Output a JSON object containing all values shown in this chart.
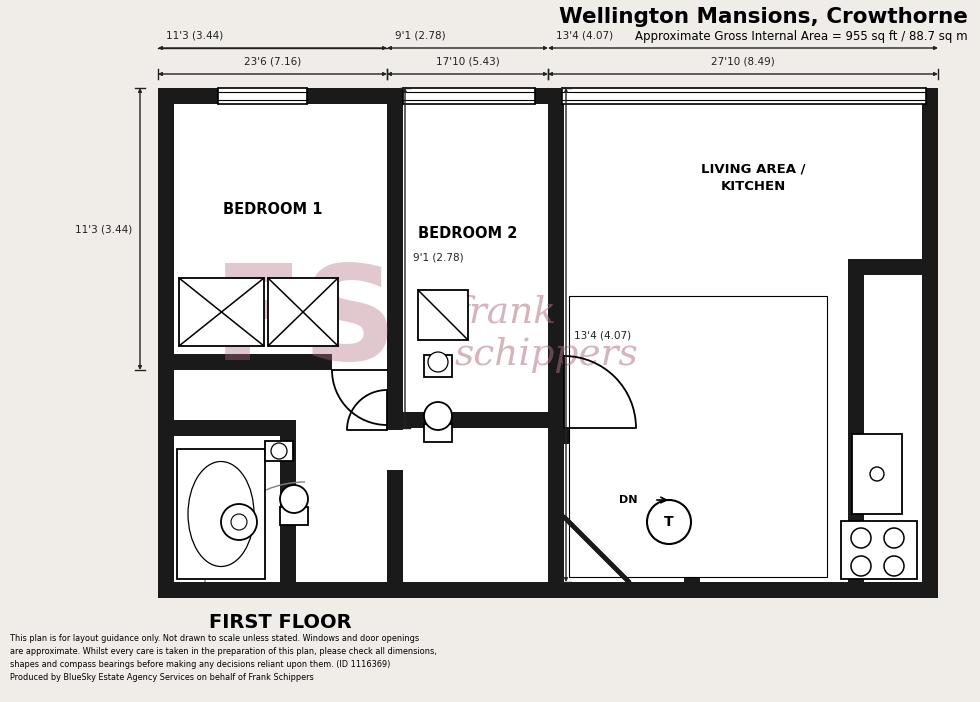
{
  "title": "Wellington Mansions, Crowthorne",
  "subtitle": "Approximate Gross Internal Area = 955 sq ft / 88.7 sq m",
  "floor_label": "FIRST FLOOR",
  "disclaimer": "This plan is for layout guidance only. Not drawn to scale unless stated. Windows and door openings\nare approximate. Whilst every care is taken in the preparation of this plan, please check all dimensions,\nshapes and compass bearings before making any decisions reliant upon them. (ID 1116369)\nProduced by BlueSky Estate Agency Services on behalf of Frank Schippers",
  "bg_color": "#f0ece8",
  "wall_color": "#1a1a1a",
  "floor_color": "#ffffff",
  "dim_color": "#222222",
  "wm_color": "#b07080",
  "dim_top_left": "23'6 (7.16)",
  "dim_top_mid": "17'10 (5.43)",
  "dim_top_right": "27'10 (8.49)",
  "dim_left": "11'3 (3.44)",
  "dim_mid": "9'1 (2.78)",
  "dim_right": "13'4 (4.07)"
}
